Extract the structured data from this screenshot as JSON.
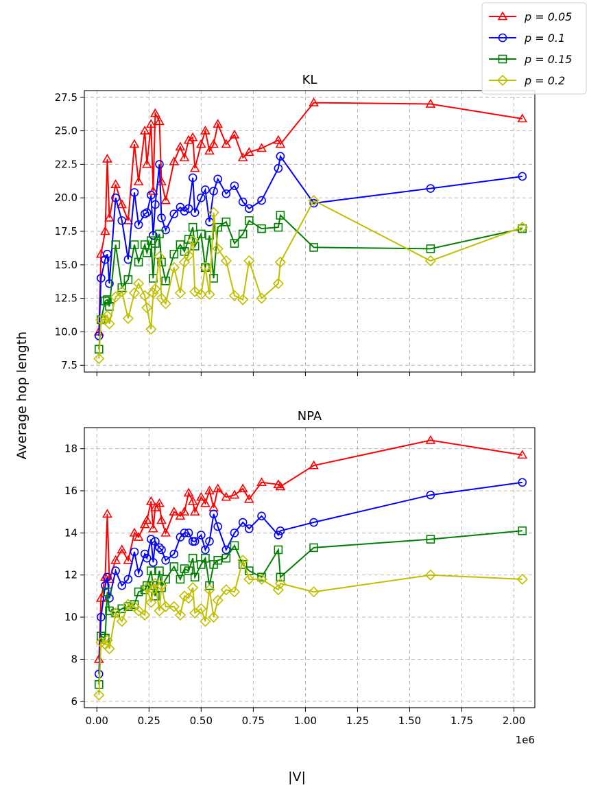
{
  "shared": {
    "ylabel": "Average hop length",
    "xlabel": "|V|",
    "x_offset_label": "1e6",
    "x_ticks": [
      0.0,
      0.25,
      0.5,
      0.75,
      1.0,
      1.25,
      1.5,
      1.75,
      2.0
    ],
    "x_tick_labels": [
      "0.00",
      "0.25",
      "0.50",
      "0.75",
      "1.00",
      "1.25",
      "1.50",
      "1.75",
      "2.00"
    ],
    "xlim": [
      -0.06,
      2.1
    ],
    "grid": true,
    "legend_placement": "top-right (outside axes)"
  },
  "legend": [
    {
      "label": "p = 0.05",
      "color": "#ff0000",
      "marker": "triangle"
    },
    {
      "label": "p = 0.1",
      "color": "#0000ff",
      "marker": "circle"
    },
    {
      "label": "p = 0.15",
      "color": "#008000",
      "marker": "square"
    },
    {
      "label": "p = 0.2",
      "color": "#bfbf00",
      "marker": "diamond"
    }
  ],
  "chart_data": [
    {
      "type": "line",
      "title": "KL",
      "ylim": [
        7.0,
        28.0
      ],
      "y_ticks": [
        7.5,
        10.0,
        12.5,
        15.0,
        17.5,
        20.0,
        22.5,
        25.0,
        27.5
      ],
      "y_tick_labels": [
        "7.5",
        "10.0",
        "12.5",
        "15.0",
        "17.5",
        "20.0",
        "22.5",
        "25.0",
        "27.5"
      ],
      "series": [
        {
          "name": "p = 0.05",
          "color": "#ff0000",
          "marker": "triangle",
          "x": [
            0.01,
            0.02,
            0.04,
            0.05,
            0.06,
            0.09,
            0.12,
            0.15,
            0.18,
            0.2,
            0.23,
            0.24,
            0.26,
            0.27,
            0.28,
            0.3,
            0.31,
            0.33,
            0.37,
            0.4,
            0.42,
            0.44,
            0.46,
            0.47,
            0.5,
            0.52,
            0.54,
            0.56,
            0.58,
            0.62,
            0.66,
            0.7,
            0.73,
            0.79,
            0.87,
            0.88,
            1.04,
            1.6,
            2.04
          ],
          "y": [
            10.0,
            15.8,
            17.5,
            22.9,
            18.5,
            21.0,
            19.5,
            18.3,
            24.0,
            21.2,
            25.0,
            22.5,
            25.5,
            20.5,
            26.3,
            25.7,
            21.2,
            19.8,
            22.7,
            23.8,
            23.0,
            24.3,
            24.5,
            22.2,
            24.0,
            25.0,
            23.5,
            24.0,
            25.5,
            24.0,
            24.7,
            23.0,
            23.4,
            23.7,
            24.3,
            24.0,
            27.1,
            27.0,
            25.9
          ]
        },
        {
          "name": "p = 0.1",
          "color": "#0000ff",
          "marker": "circle",
          "x": [
            0.01,
            0.02,
            0.04,
            0.05,
            0.06,
            0.09,
            0.12,
            0.15,
            0.18,
            0.2,
            0.23,
            0.24,
            0.26,
            0.27,
            0.28,
            0.3,
            0.31,
            0.33,
            0.37,
            0.4,
            0.42,
            0.44,
            0.46,
            0.47,
            0.5,
            0.52,
            0.54,
            0.56,
            0.58,
            0.62,
            0.66,
            0.7,
            0.73,
            0.79,
            0.87,
            0.88,
            1.04,
            1.6,
            2.04
          ],
          "y": [
            9.7,
            14.0,
            15.4,
            15.8,
            13.6,
            20.0,
            18.3,
            15.4,
            20.4,
            18.0,
            18.8,
            18.9,
            20.2,
            17.2,
            19.5,
            22.5,
            18.5,
            17.6,
            18.8,
            19.3,
            19.0,
            19.2,
            21.5,
            18.9,
            20.0,
            20.6,
            18.2,
            20.5,
            21.4,
            20.3,
            20.9,
            19.7,
            19.2,
            19.8,
            22.2,
            23.1,
            19.6,
            20.7,
            21.6
          ]
        },
        {
          "name": "p = 0.15",
          "color": "#008000",
          "marker": "square",
          "x": [
            0.01,
            0.02,
            0.04,
            0.05,
            0.06,
            0.09,
            0.12,
            0.15,
            0.18,
            0.2,
            0.23,
            0.24,
            0.26,
            0.27,
            0.28,
            0.3,
            0.31,
            0.33,
            0.37,
            0.4,
            0.42,
            0.44,
            0.46,
            0.47,
            0.5,
            0.52,
            0.54,
            0.56,
            0.58,
            0.62,
            0.66,
            0.7,
            0.73,
            0.79,
            0.87,
            0.88,
            1.04,
            1.6,
            2.04
          ],
          "y": [
            8.7,
            10.9,
            12.3,
            12.4,
            11.9,
            16.5,
            13.3,
            13.9,
            16.5,
            15.2,
            16.5,
            15.9,
            16.8,
            14.0,
            16.6,
            17.3,
            15.2,
            13.8,
            15.8,
            16.5,
            16.0,
            16.9,
            17.8,
            16.4,
            17.3,
            14.8,
            17.2,
            14.0,
            17.8,
            18.2,
            16.6,
            17.3,
            18.3,
            17.7,
            17.8,
            18.7,
            16.3,
            16.2,
            17.7
          ]
        },
        {
          "name": "p = 0.2",
          "color": "#bfbf00",
          "marker": "diamond",
          "x": [
            0.01,
            0.02,
            0.04,
            0.05,
            0.06,
            0.09,
            0.12,
            0.15,
            0.18,
            0.2,
            0.23,
            0.24,
            0.26,
            0.27,
            0.28,
            0.3,
            0.31,
            0.33,
            0.37,
            0.4,
            0.42,
            0.44,
            0.46,
            0.47,
            0.5,
            0.52,
            0.54,
            0.56,
            0.58,
            0.62,
            0.66,
            0.7,
            0.73,
            0.79,
            0.87,
            0.88,
            1.04,
            1.6,
            2.04
          ],
          "y": [
            8.0,
            10.9,
            10.9,
            11.2,
            10.6,
            12.6,
            13.0,
            11.0,
            12.9,
            13.6,
            12.7,
            11.8,
            10.2,
            12.9,
            13.2,
            15.6,
            12.5,
            12.1,
            14.8,
            12.9,
            15.2,
            15.7,
            16.8,
            13.0,
            12.8,
            14.8,
            12.8,
            18.9,
            16.2,
            15.3,
            12.7,
            12.4,
            15.3,
            12.5,
            13.6,
            15.2,
            19.8,
            15.3,
            17.8
          ]
        }
      ]
    },
    {
      "type": "line",
      "title": "NPA",
      "ylim": [
        5.7,
        19.0
      ],
      "y_ticks": [
        6,
        8,
        10,
        12,
        14,
        16,
        18
      ],
      "y_tick_labels": [
        "6",
        "8",
        "10",
        "12",
        "14",
        "16",
        "18"
      ],
      "series": [
        {
          "name": "p = 0.05",
          "color": "#ff0000",
          "marker": "triangle",
          "x": [
            0.01,
            0.02,
            0.04,
            0.05,
            0.06,
            0.09,
            0.12,
            0.15,
            0.18,
            0.2,
            0.23,
            0.24,
            0.26,
            0.27,
            0.28,
            0.3,
            0.31,
            0.33,
            0.37,
            0.4,
            0.42,
            0.44,
            0.46,
            0.47,
            0.5,
            0.52,
            0.54,
            0.56,
            0.58,
            0.62,
            0.66,
            0.7,
            0.73,
            0.79,
            0.87,
            0.88,
            1.04,
            1.6,
            2.04
          ],
          "y": [
            8.0,
            10.9,
            11.9,
            14.9,
            11.8,
            12.7,
            13.2,
            12.7,
            14.0,
            13.8,
            14.4,
            14.6,
            15.5,
            14.2,
            15.2,
            15.4,
            14.6,
            14.0,
            15.0,
            14.8,
            15.0,
            15.9,
            15.5,
            15.0,
            15.7,
            15.4,
            16.0,
            15.2,
            16.1,
            15.7,
            15.8,
            16.1,
            15.6,
            16.4,
            16.3,
            16.2,
            17.2,
            18.4,
            17.7
          ]
        },
        {
          "name": "p = 0.1",
          "color": "#0000ff",
          "marker": "circle",
          "x": [
            0.01,
            0.02,
            0.04,
            0.05,
            0.06,
            0.09,
            0.12,
            0.15,
            0.18,
            0.2,
            0.23,
            0.24,
            0.26,
            0.27,
            0.28,
            0.3,
            0.31,
            0.33,
            0.37,
            0.4,
            0.42,
            0.44,
            0.46,
            0.47,
            0.5,
            0.52,
            0.54,
            0.56,
            0.58,
            0.62,
            0.66,
            0.7,
            0.73,
            0.79,
            0.87,
            0.88,
            1.04,
            1.6,
            2.04
          ],
          "y": [
            7.3,
            10.0,
            11.5,
            11.9,
            10.9,
            12.2,
            11.5,
            11.8,
            13.1,
            12.1,
            13.0,
            12.8,
            13.7,
            12.6,
            13.6,
            13.3,
            13.2,
            12.7,
            13.0,
            13.8,
            14.0,
            14.0,
            13.6,
            13.6,
            13.9,
            13.2,
            13.6,
            14.9,
            14.3,
            13.2,
            14.0,
            14.5,
            14.2,
            14.8,
            13.9,
            14.1,
            14.5,
            15.8,
            16.4
          ]
        },
        {
          "name": "p = 0.15",
          "color": "#008000",
          "marker": "square",
          "x": [
            0.01,
            0.02,
            0.04,
            0.05,
            0.06,
            0.09,
            0.12,
            0.15,
            0.18,
            0.2,
            0.23,
            0.24,
            0.26,
            0.27,
            0.28,
            0.3,
            0.31,
            0.33,
            0.37,
            0.4,
            0.42,
            0.44,
            0.46,
            0.47,
            0.5,
            0.52,
            0.54,
            0.56,
            0.58,
            0.62,
            0.66,
            0.7,
            0.73,
            0.79,
            0.87,
            0.88,
            1.04,
            1.6,
            2.04
          ],
          "y": [
            6.8,
            9.1,
            9.0,
            11.2,
            10.3,
            10.2,
            10.4,
            10.5,
            10.6,
            11.2,
            11.3,
            11.5,
            12.2,
            11.5,
            11.0,
            12.2,
            11.4,
            11.8,
            12.4,
            11.8,
            12.3,
            12.2,
            12.8,
            11.9,
            12.5,
            12.8,
            11.5,
            12.5,
            12.7,
            12.8,
            13.4,
            12.5,
            12.2,
            11.9,
            13.2,
            11.9,
            13.3,
            13.7,
            14.1
          ]
        },
        {
          "name": "p = 0.2",
          "color": "#bfbf00",
          "marker": "diamond",
          "x": [
            0.01,
            0.02,
            0.04,
            0.05,
            0.06,
            0.09,
            0.12,
            0.15,
            0.18,
            0.2,
            0.23,
            0.24,
            0.26,
            0.27,
            0.28,
            0.3,
            0.31,
            0.33,
            0.37,
            0.4,
            0.42,
            0.44,
            0.46,
            0.47,
            0.5,
            0.52,
            0.54,
            0.56,
            0.58,
            0.62,
            0.66,
            0.7,
            0.73,
            0.79,
            0.87,
            0.88,
            1.04,
            1.6,
            2.04
          ],
          "y": [
            6.3,
            8.8,
            8.7,
            8.9,
            8.5,
            10.2,
            9.8,
            10.6,
            10.5,
            10.3,
            10.1,
            11.4,
            10.7,
            11.3,
            11.6,
            10.3,
            11.5,
            10.5,
            10.5,
            10.1,
            11.0,
            10.9,
            11.4,
            10.2,
            10.4,
            9.8,
            11.3,
            10.0,
            10.8,
            11.3,
            11.2,
            12.7,
            11.8,
            11.8,
            11.3,
            11.6,
            11.2,
            12.0,
            11.8
          ]
        }
      ]
    }
  ]
}
